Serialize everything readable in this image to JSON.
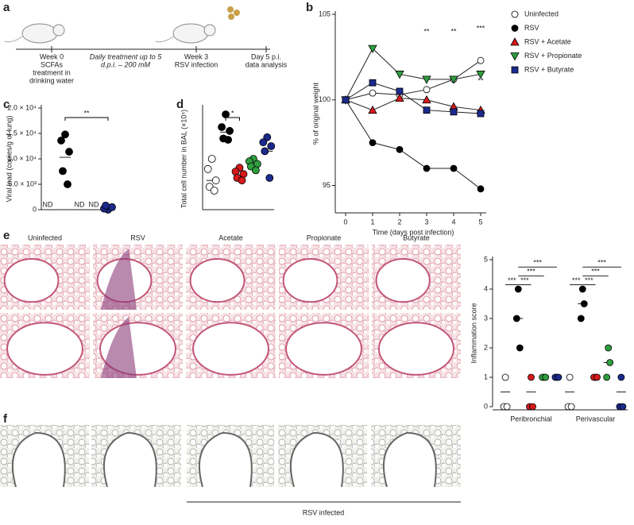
{
  "panel_labels": [
    "a",
    "b",
    "c",
    "d",
    "e",
    "f"
  ],
  "schematic": {
    "steps": [
      [
        "Week 0",
        "SCFAs",
        "treatment in",
        "drinking water"
      ],
      [
        "Daily treatment up to 5",
        "d.p.i. – 200 mM"
      ],
      [
        "Week 3",
        "RSV infection"
      ],
      [
        "Day 5 p.i.",
        "data analysis"
      ]
    ]
  },
  "histology": {
    "columns": [
      "Uninfected",
      "RSV",
      "Acetate",
      "Propionate",
      "Butyrate"
    ],
    "footnote": "RSV infected"
  },
  "chart_data": [
    {
      "type": "line",
      "ylabel": "% of original weight",
      "xlabel": "Time (days post infection)",
      "x": [
        0,
        1,
        2,
        3,
        4,
        5
      ],
      "xlim": [
        0,
        5
      ],
      "xticks": [
        0,
        1,
        2,
        3,
        4,
        5
      ],
      "ylim": [
        93.4,
        105
      ],
      "yticks": [
        95,
        100,
        105
      ],
      "series": [
        {
          "name": "Uninfected",
          "color": "#ffffff",
          "marker": "circle",
          "values": [
            100,
            100.4,
            100.3,
            100.6,
            101.2,
            102.3
          ]
        },
        {
          "name": "RSV",
          "color": "#000000",
          "marker": "circle",
          "values": [
            100,
            97.5,
            97.1,
            96,
            96,
            94.8
          ]
        },
        {
          "name": "RSV + Acetate",
          "color": "#d7191c",
          "marker": "triangle-up",
          "values": [
            100,
            99.4,
            100.1,
            100,
            99.6,
            99.4
          ]
        },
        {
          "name": "RSV + Propionate",
          "color": "#2e9e3e",
          "marker": "triangle-down",
          "values": [
            100,
            103,
            101.5,
            101.2,
            101.2,
            101.5
          ]
        },
        {
          "name": "RSV + Butyrate",
          "color": "#1b2a8c",
          "marker": "square",
          "values": [
            100,
            101,
            100.5,
            99.4,
            99.3,
            99.2
          ]
        }
      ],
      "annotations": [
        "**",
        "**",
        "***",
        "**"
      ]
    },
    {
      "type": "dot",
      "ylabel": "Viral load (copies/g of lung)",
      "ylim": [
        0,
        20000
      ],
      "yticks": [
        0,
        {
          "value": 5000,
          "label": "5.0 × 10³"
        },
        {
          "value": 10000,
          "label": "1.0 × 10⁴"
        },
        {
          "value": 15000,
          "label": "1.5 × 10⁴"
        },
        {
          "value": 20000,
          "label": "2.0 × 10⁴"
        }
      ],
      "categories": [
        "ND",
        null,
        "ND",
        "ND",
        null
      ],
      "groups": [
        {
          "color": "#ffffff",
          "values": []
        },
        {
          "color": "#000000",
          "values": [
            14800,
            13600,
            11400,
            7600,
            5000
          ],
          "mean": 10300
        },
        {
          "color": "#d7191c",
          "values": []
        },
        {
          "color": "#2e9e3e",
          "values": []
        },
        {
          "color": "#1b2a8c",
          "values": [
            0,
            200,
            500,
            800
          ],
          "mean": 400
        }
      ],
      "annotations": [
        "**"
      ]
    },
    {
      "type": "dot",
      "ylabel": "Total cell number in BAL (×10⁵)",
      "ylim": [
        0,
        8
      ],
      "groups": [
        {
          "color": "#ffffff",
          "values": [
            4,
            3.2,
            2.3,
            1.8,
            1.5
          ],
          "mean": 2.3
        },
        {
          "color": "#000000",
          "values": [
            7.5,
            6.5,
            6.2,
            5.6,
            5.5
          ],
          "mean": 6.1
        },
        {
          "color": "#d7191c",
          "values": [
            3.3,
            3,
            2.8,
            2.5,
            2.3
          ],
          "mean": 2.7
        },
        {
          "color": "#2e9e3e",
          "values": [
            4,
            3.8,
            3.6,
            3.4,
            3.1
          ],
          "mean": 3.6
        },
        {
          "color": "#1b2a8c",
          "values": [
            5.7,
            5.3,
            5,
            4.6,
            2.5
          ],
          "mean": 4.6
        }
      ],
      "annotations": [
        "*"
      ]
    },
    {
      "type": "groupdot",
      "ylabel": "Inflammation score",
      "ylim": [
        0,
        5
      ],
      "yticks": [
        0,
        1,
        2,
        3,
        4,
        5
      ],
      "categories": [
        "Peribronchial",
        "Perivascular"
      ],
      "series": [
        {
          "color": "#ffffff",
          "values": [
            [
              1,
              0,
              0
            ],
            [
              1,
              0,
              0
            ]
          ],
          "means": [
            0.5,
            0.5
          ]
        },
        {
          "color": "#000000",
          "values": [
            [
              4,
              3,
              2
            ],
            [
              4,
              3,
              3.5
            ]
          ],
          "means": [
            3,
            3.5
          ]
        },
        {
          "color": "#d7191c",
          "values": [
            [
              1,
              0,
              0
            ],
            [
              1,
              1,
              1
            ]
          ],
          "means": [
            0.5,
            1
          ]
        },
        {
          "color": "#2e9e3e",
          "values": [
            [
              1,
              1,
              1
            ],
            [
              2,
              1,
              1.5
            ]
          ],
          "means": [
            1,
            1.5
          ]
        },
        {
          "color": "#1b2a8c",
          "values": [
            [
              1,
              1,
              1
            ],
            [
              1,
              0,
              0
            ]
          ],
          "means": [
            1,
            0.5
          ]
        }
      ],
      "annotations": [
        "***",
        "***",
        "***",
        "***",
        "***",
        "***",
        "***",
        "***"
      ]
    }
  ]
}
